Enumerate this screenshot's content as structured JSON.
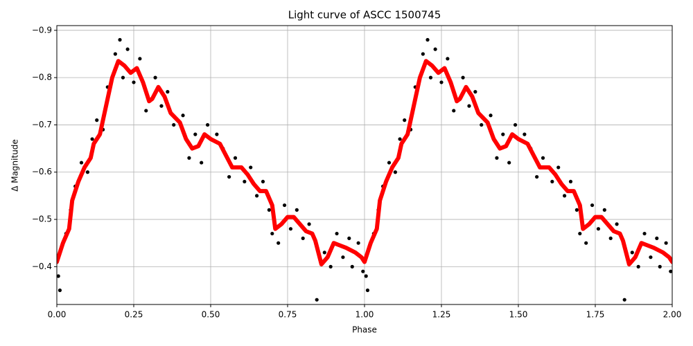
{
  "chart_data": {
    "type": "scatter",
    "title": "Light curve of ASCC 1500745",
    "x_label": "Phase",
    "y_label": "Δ Magnitude",
    "xlim": [
      0,
      2
    ],
    "ylim": [
      -0.32,
      -0.91
    ],
    "xticks": [
      {
        "value": 0,
        "label": "0.00"
      },
      {
        "value": 0.25,
        "label": "0.25"
      },
      {
        "value": 0.5,
        "label": "0.50"
      },
      {
        "value": 0.75,
        "label": "0.75"
      },
      {
        "value": 1,
        "label": "1.00"
      },
      {
        "value": 1.25,
        "label": "1.25"
      },
      {
        "value": 1.5,
        "label": "1.50"
      },
      {
        "value": 1.75,
        "label": "1.75"
      },
      {
        "value": 2,
        "label": "2.00"
      }
    ],
    "yticks": [
      {
        "value": -0.4,
        "label": "−0.4"
      },
      {
        "value": -0.5,
        "label": "−0.5"
      },
      {
        "value": -0.6,
        "label": "−0.6"
      },
      {
        "value": -0.7,
        "label": "−0.7"
      },
      {
        "value": -0.8,
        "label": "−0.8"
      },
      {
        "value": -0.9,
        "label": "−0.9"
      }
    ],
    "grid": true,
    "series": [
      {
        "type": "scatter",
        "color": "#000000",
        "x": [
          0.005,
          0.01,
          0.015,
          0.03,
          0.045,
          0.06,
          0.08,
          0.1,
          0.115,
          0.13,
          0.15,
          0.165,
          0.19,
          0.205,
          0.215,
          0.23,
          0.25,
          0.27,
          0.29,
          0.32,
          0.34,
          0.36,
          0.38,
          0.41,
          0.43,
          0.45,
          0.47,
          0.49,
          0.52,
          0.54,
          0.56,
          0.58,
          0.61,
          0.63,
          0.65,
          0.67,
          0.69,
          0.7,
          0.72,
          0.74,
          0.76,
          0.78,
          0.8,
          0.82,
          0.845,
          0.87,
          0.89,
          0.91,
          0.93,
          0.95,
          0.96,
          0.98,
          0.995,
          1.005,
          1.01,
          1.015,
          1.03,
          1.045,
          1.06,
          1.08,
          1.1,
          1.115,
          1.13,
          1.15,
          1.165,
          1.19,
          1.205,
          1.215,
          1.23,
          1.25,
          1.27,
          1.29,
          1.32,
          1.34,
          1.36,
          1.38,
          1.41,
          1.43,
          1.45,
          1.47,
          1.49,
          1.52,
          1.54,
          1.56,
          1.58,
          1.61,
          1.63,
          1.65,
          1.67,
          1.69,
          1.7,
          1.72,
          1.74,
          1.76,
          1.78,
          1.8,
          1.82,
          1.845,
          1.87,
          1.89,
          1.91,
          1.93,
          1.95,
          1.96,
          1.98,
          1.995
        ],
        "values": [
          -0.38,
          -0.35,
          -0.44,
          -0.47,
          -0.52,
          -0.57,
          -0.62,
          -0.6,
          -0.67,
          -0.71,
          -0.69,
          -0.78,
          -0.85,
          -0.88,
          -0.8,
          -0.86,
          -0.79,
          -0.84,
          -0.73,
          -0.8,
          -0.74,
          -0.77,
          -0.7,
          -0.72,
          -0.63,
          -0.68,
          -0.62,
          -0.7,
          -0.68,
          -0.65,
          -0.59,
          -0.63,
          -0.58,
          -0.61,
          -0.55,
          -0.58,
          -0.52,
          -0.47,
          -0.45,
          -0.53,
          -0.48,
          -0.52,
          -0.46,
          -0.49,
          -0.33,
          -0.43,
          -0.4,
          -0.47,
          -0.42,
          -0.46,
          -0.4,
          -0.45,
          -0.39,
          -0.38,
          -0.35,
          -0.44,
          -0.47,
          -0.52,
          -0.57,
          -0.62,
          -0.6,
          -0.67,
          -0.71,
          -0.69,
          -0.78,
          -0.85,
          -0.88,
          -0.8,
          -0.86,
          -0.79,
          -0.84,
          -0.73,
          -0.8,
          -0.74,
          -0.77,
          -0.7,
          -0.72,
          -0.63,
          -0.68,
          -0.62,
          -0.7,
          -0.68,
          -0.65,
          -0.59,
          -0.63,
          -0.58,
          -0.61,
          -0.55,
          -0.58,
          -0.52,
          -0.47,
          -0.45,
          -0.53,
          -0.48,
          -0.52,
          -0.46,
          -0.49,
          -0.33,
          -0.43,
          -0.4,
          -0.47,
          -0.42,
          -0.46,
          -0.4,
          -0.45,
          -0.39
        ]
      },
      {
        "type": "line",
        "color": "#ff0000",
        "x": [
          0.0,
          0.02,
          0.04,
          0.05,
          0.07,
          0.09,
          0.11,
          0.12,
          0.14,
          0.16,
          0.18,
          0.2,
          0.22,
          0.24,
          0.26,
          0.28,
          0.3,
          0.31,
          0.33,
          0.35,
          0.37,
          0.4,
          0.42,
          0.44,
          0.46,
          0.48,
          0.5,
          0.53,
          0.55,
          0.57,
          0.6,
          0.62,
          0.64,
          0.66,
          0.68,
          0.7,
          0.71,
          0.73,
          0.75,
          0.77,
          0.79,
          0.81,
          0.83,
          0.84,
          0.86,
          0.88,
          0.9,
          0.92,
          0.94,
          0.97,
          0.99,
          1.0,
          1.02,
          1.04,
          1.05,
          1.07,
          1.09,
          1.11,
          1.12,
          1.14,
          1.16,
          1.18,
          1.2,
          1.22,
          1.24,
          1.26,
          1.28,
          1.3,
          1.31,
          1.33,
          1.35,
          1.37,
          1.4,
          1.42,
          1.44,
          1.46,
          1.48,
          1.5,
          1.53,
          1.55,
          1.57,
          1.6,
          1.62,
          1.64,
          1.66,
          1.68,
          1.7,
          1.71,
          1.73,
          1.75,
          1.77,
          1.79,
          1.81,
          1.83,
          1.84,
          1.86,
          1.88,
          1.9,
          1.92,
          1.94,
          1.97,
          1.99,
          2.0
        ],
        "values": [
          -0.41,
          -0.45,
          -0.48,
          -0.54,
          -0.58,
          -0.61,
          -0.63,
          -0.66,
          -0.68,
          -0.74,
          -0.8,
          -0.835,
          -0.825,
          -0.81,
          -0.82,
          -0.79,
          -0.75,
          -0.755,
          -0.78,
          -0.76,
          -0.725,
          -0.705,
          -0.67,
          -0.65,
          -0.655,
          -0.68,
          -0.67,
          -0.66,
          -0.635,
          -0.61,
          -0.61,
          -0.595,
          -0.575,
          -0.56,
          -0.56,
          -0.53,
          -0.48,
          -0.49,
          -0.505,
          -0.505,
          -0.49,
          -0.475,
          -0.47,
          -0.455,
          -0.405,
          -0.42,
          -0.45,
          -0.445,
          -0.44,
          -0.43,
          -0.42,
          -0.41,
          -0.45,
          -0.48,
          -0.54,
          -0.58,
          -0.61,
          -0.63,
          -0.66,
          -0.68,
          -0.74,
          -0.8,
          -0.835,
          -0.825,
          -0.81,
          -0.82,
          -0.79,
          -0.75,
          -0.755,
          -0.78,
          -0.76,
          -0.725,
          -0.705,
          -0.67,
          -0.65,
          -0.655,
          -0.68,
          -0.67,
          -0.66,
          -0.635,
          -0.61,
          -0.61,
          -0.595,
          -0.575,
          -0.56,
          -0.56,
          -0.53,
          -0.48,
          -0.49,
          -0.505,
          -0.505,
          -0.49,
          -0.475,
          -0.47,
          -0.455,
          -0.405,
          -0.42,
          -0.45,
          -0.445,
          -0.44,
          -0.43,
          -0.42,
          -0.41
        ]
      }
    ]
  }
}
